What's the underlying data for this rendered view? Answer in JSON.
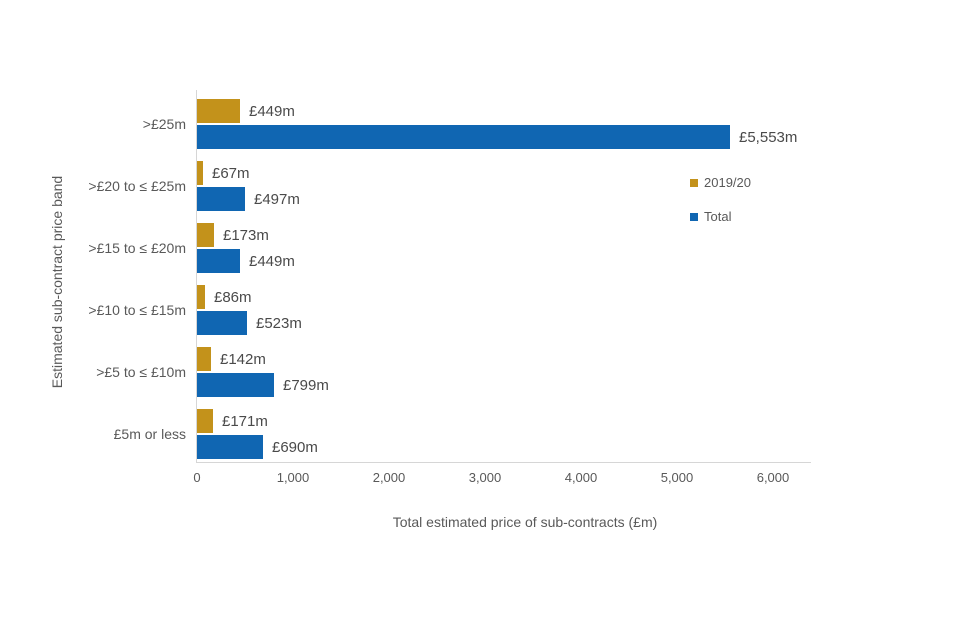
{
  "chart": {
    "x_axis_title": "Total estimated price of sub-contracts (£m)",
    "y_axis_title": "Estimated sub-contract price band",
    "colors": {
      "gold": "#c3921b",
      "blue": "#1066b2",
      "axis_line": "#d6d6d6",
      "text": "#595959",
      "data_label_text": "#4a4a4a",
      "background": "#ffffff"
    }
  },
  "chart_data": {
    "type": "bar",
    "orientation": "horizontal",
    "title": "",
    "xlabel": "Total estimated price of sub-contracts (£m)",
    "ylabel": "Estimated sub-contract price band",
    "categories": [
      ">£25m",
      ">£20 to ≤ £25m",
      ">£15 to ≤ £20m",
      ">£10 to ≤ £15m",
      ">£5 to ≤ £10m",
      "£5m or less"
    ],
    "series": [
      {
        "name": "2019/20",
        "color": "#c3921b",
        "values": [
          449,
          67,
          173,
          86,
          142,
          171
        ],
        "labels": [
          "£449m",
          "£67m",
          "£173m",
          "£86m",
          "£142m",
          "£171m"
        ]
      },
      {
        "name": "Total",
        "color": "#1066b2",
        "values": [
          5553,
          497,
          449,
          523,
          799,
          690
        ],
        "labels": [
          "£5,553m",
          "£497m",
          "£449m",
          "£523m",
          "£799m",
          "£690m"
        ]
      }
    ],
    "x_ticks": [
      0,
      1000,
      2000,
      3000,
      4000,
      5000,
      6000
    ],
    "x_tick_labels": [
      "0",
      "1,000",
      "2,000",
      "3,000",
      "4,000",
      "5,000",
      "6,000"
    ],
    "xlim": [
      0,
      6000
    ],
    "grid": false,
    "legend_position": "upper-right-of-plot",
    "legend_order": [
      "2019/20",
      "Total"
    ]
  }
}
